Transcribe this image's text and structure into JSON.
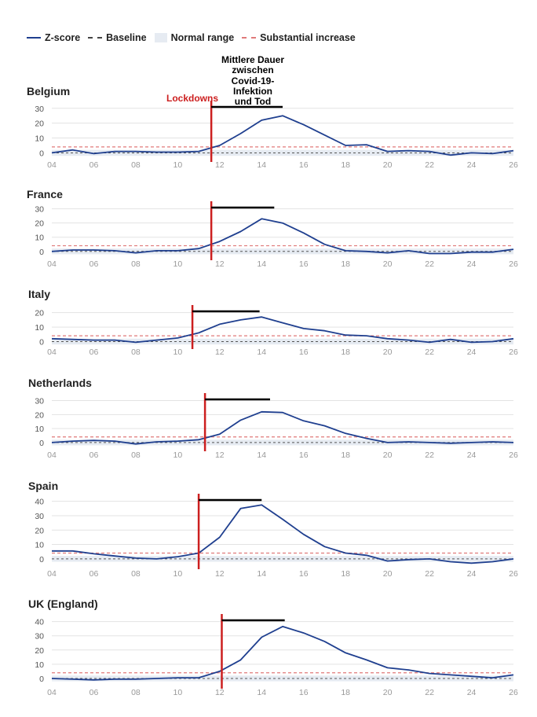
{
  "legend": {
    "zscore": "Z-score",
    "baseline": "Baseline",
    "normal_range": "Normal range",
    "substantial_increase": "Substantial increase"
  },
  "annotation": {
    "lines": [
      "Mittlere Dauer",
      "zwischen",
      "Covid-19-",
      "Infektion",
      "und Tod"
    ],
    "lockdowns_label": "Lockdowns"
  },
  "colors": {
    "zscore": "#1f3f8f",
    "baseline": "#555555",
    "normal_range": "#e6ebf2",
    "substantial_increase": "#e07a7a",
    "lockdown": "#cc1f1f",
    "duration_bar": "#000000",
    "grid": "#e3e3e3",
    "tick_label": "#999999"
  },
  "chart_data": [
    {
      "type": "line",
      "title": "Belgium",
      "x": [
        "04",
        "05",
        "06",
        "07",
        "08",
        "09",
        "10",
        "11",
        "12",
        "13",
        "14",
        "15",
        "16",
        "17",
        "18",
        "19",
        "20",
        "21",
        "22",
        "23",
        "24",
        "25",
        "26"
      ],
      "xticks": [
        "04",
        "06",
        "08",
        "10",
        "12",
        "14",
        "16",
        "18",
        "20",
        "22",
        "24",
        "26"
      ],
      "series": [
        {
          "values": [
            0,
            2,
            -0.5,
            1,
            1,
            0.5,
            0.5,
            1,
            5,
            13,
            22,
            25,
            19,
            12,
            5,
            5.5,
            1,
            1.5,
            1,
            -1.5,
            0,
            -0.5,
            1.5
          ]
        }
      ],
      "yticks": [
        0,
        10,
        20,
        30
      ],
      "ylim": [
        -4,
        32
      ],
      "baseline": 0,
      "normal_range": [
        -2,
        2
      ],
      "substantial_increase": 4,
      "lockdown_week": 11.6,
      "duration_bar": [
        11.6,
        15
      ]
    },
    {
      "type": "line",
      "title": "France",
      "x": [
        "04",
        "05",
        "06",
        "07",
        "08",
        "09",
        "10",
        "11",
        "12",
        "13",
        "14",
        "15",
        "16",
        "17",
        "18",
        "19",
        "20",
        "21",
        "22",
        "23",
        "24",
        "25",
        "26"
      ],
      "xticks": [
        "04",
        "06",
        "08",
        "10",
        "12",
        "14",
        "16",
        "18",
        "20",
        "22",
        "24",
        "26"
      ],
      "series": [
        {
          "values": [
            0,
            1,
            1,
            0.5,
            -1,
            0.5,
            0.5,
            2,
            7,
            14,
            23,
            20,
            13,
            5,
            0.5,
            0,
            -1,
            0.5,
            -1.5,
            -1.5,
            -0.5,
            -0.5,
            1.5
          ]
        }
      ],
      "yticks": [
        0,
        10,
        20,
        30
      ],
      "ylim": [
        -4,
        32
      ],
      "baseline": 0,
      "normal_range": [
        -2,
        2
      ],
      "substantial_increase": 4,
      "lockdown_week": 11.6,
      "duration_bar": [
        11.6,
        14.6
      ]
    },
    {
      "type": "line",
      "title": "Italy",
      "x": [
        "04",
        "05",
        "06",
        "07",
        "08",
        "09",
        "10",
        "11",
        "12",
        "13",
        "14",
        "15",
        "16",
        "17",
        "18",
        "19",
        "20",
        "21",
        "22",
        "23",
        "24",
        "25",
        "26"
      ],
      "xticks": [
        "04",
        "06",
        "08",
        "10",
        "12",
        "14",
        "16",
        "18",
        "20",
        "22",
        "24",
        "26"
      ],
      "series": [
        {
          "values": [
            2,
            1.5,
            1,
            1,
            -0.5,
            1,
            2.5,
            6,
            12,
            15,
            17,
            13,
            9,
            7.5,
            4.5,
            4,
            2,
            1,
            -0.5,
            1.5,
            -0.5,
            0,
            2
          ]
        }
      ],
      "yticks": [
        0,
        10,
        20
      ],
      "ylim": [
        -3,
        22
      ],
      "baseline": 0,
      "normal_range": [
        -2,
        2
      ],
      "substantial_increase": 4,
      "lockdown_week": 10.7,
      "duration_bar": [
        10.7,
        13.9
      ]
    },
    {
      "type": "line",
      "title": "Netherlands",
      "x": [
        "04",
        "05",
        "06",
        "07",
        "08",
        "09",
        "10",
        "11",
        "12",
        "13",
        "14",
        "15",
        "16",
        "17",
        "18",
        "19",
        "20",
        "21",
        "22",
        "23",
        "24",
        "25",
        "26"
      ],
      "xticks": [
        "04",
        "06",
        "08",
        "10",
        "12",
        "14",
        "16",
        "18",
        "20",
        "22",
        "24",
        "26"
      ],
      "series": [
        {
          "values": [
            0,
            1,
            1.5,
            1,
            -1,
            0.5,
            1,
            2,
            6,
            16,
            22,
            21.5,
            15.5,
            12,
            6.5,
            3,
            0,
            0.5,
            0,
            -0.5,
            0,
            0.5,
            0
          ]
        }
      ],
      "yticks": [
        0,
        10,
        20,
        30
      ],
      "ylim": [
        -4,
        32
      ],
      "baseline": 0,
      "normal_range": [
        -2,
        2
      ],
      "substantial_increase": 4,
      "lockdown_week": 11.3,
      "duration_bar": [
        11.3,
        14.4
      ]
    },
    {
      "type": "line",
      "title": "Spain",
      "x": [
        "04",
        "05",
        "06",
        "07",
        "08",
        "09",
        "10",
        "11",
        "12",
        "13",
        "14",
        "15",
        "16",
        "17",
        "18",
        "19",
        "20",
        "21",
        "22",
        "23",
        "24",
        "25",
        "26"
      ],
      "xticks": [
        "04",
        "06",
        "08",
        "10",
        "12",
        "14",
        "16",
        "18",
        "20",
        "22",
        "24",
        "26"
      ],
      "series": [
        {
          "values": [
            5.5,
            5.5,
            3.5,
            2,
            0.5,
            0,
            1.5,
            4,
            15,
            35,
            37.5,
            27.5,
            17,
            8.5,
            4,
            2.5,
            -1.5,
            -0.5,
            0,
            -2,
            -3,
            -2,
            0
          ]
        }
      ],
      "yticks": [
        0,
        10,
        20,
        30,
        40
      ],
      "ylim": [
        -5,
        42
      ],
      "baseline": 0,
      "normal_range": [
        -2,
        2
      ],
      "substantial_increase": 4,
      "lockdown_week": 11,
      "duration_bar": [
        11,
        14
      ]
    },
    {
      "type": "line",
      "title": "UK (England)",
      "x": [
        "04",
        "05",
        "06",
        "07",
        "08",
        "09",
        "10",
        "11",
        "12",
        "13",
        "14",
        "15",
        "16",
        "17",
        "18",
        "19",
        "20",
        "21",
        "22",
        "23",
        "24",
        "25",
        "26"
      ],
      "xticks": [
        "04",
        "06",
        "08",
        "10",
        "12",
        "14",
        "16",
        "18",
        "20",
        "22",
        "24",
        "26"
      ],
      "series": [
        {
          "values": [
            0,
            -0.5,
            -1,
            -0.5,
            -0.5,
            0,
            0.5,
            0.5,
            5,
            13,
            29,
            36.5,
            32,
            26,
            18,
            13,
            7.5,
            6,
            3.5,
            2.5,
            1.5,
            0.5,
            2.5
          ]
        }
      ],
      "yticks": [
        0,
        10,
        20,
        30,
        40
      ],
      "ylim": [
        -5,
        42
      ],
      "baseline": 0,
      "normal_range": [
        -2,
        2
      ],
      "substantial_increase": 4,
      "lockdown_week": 12.1,
      "duration_bar": [
        12.1,
        15.1
      ]
    }
  ]
}
